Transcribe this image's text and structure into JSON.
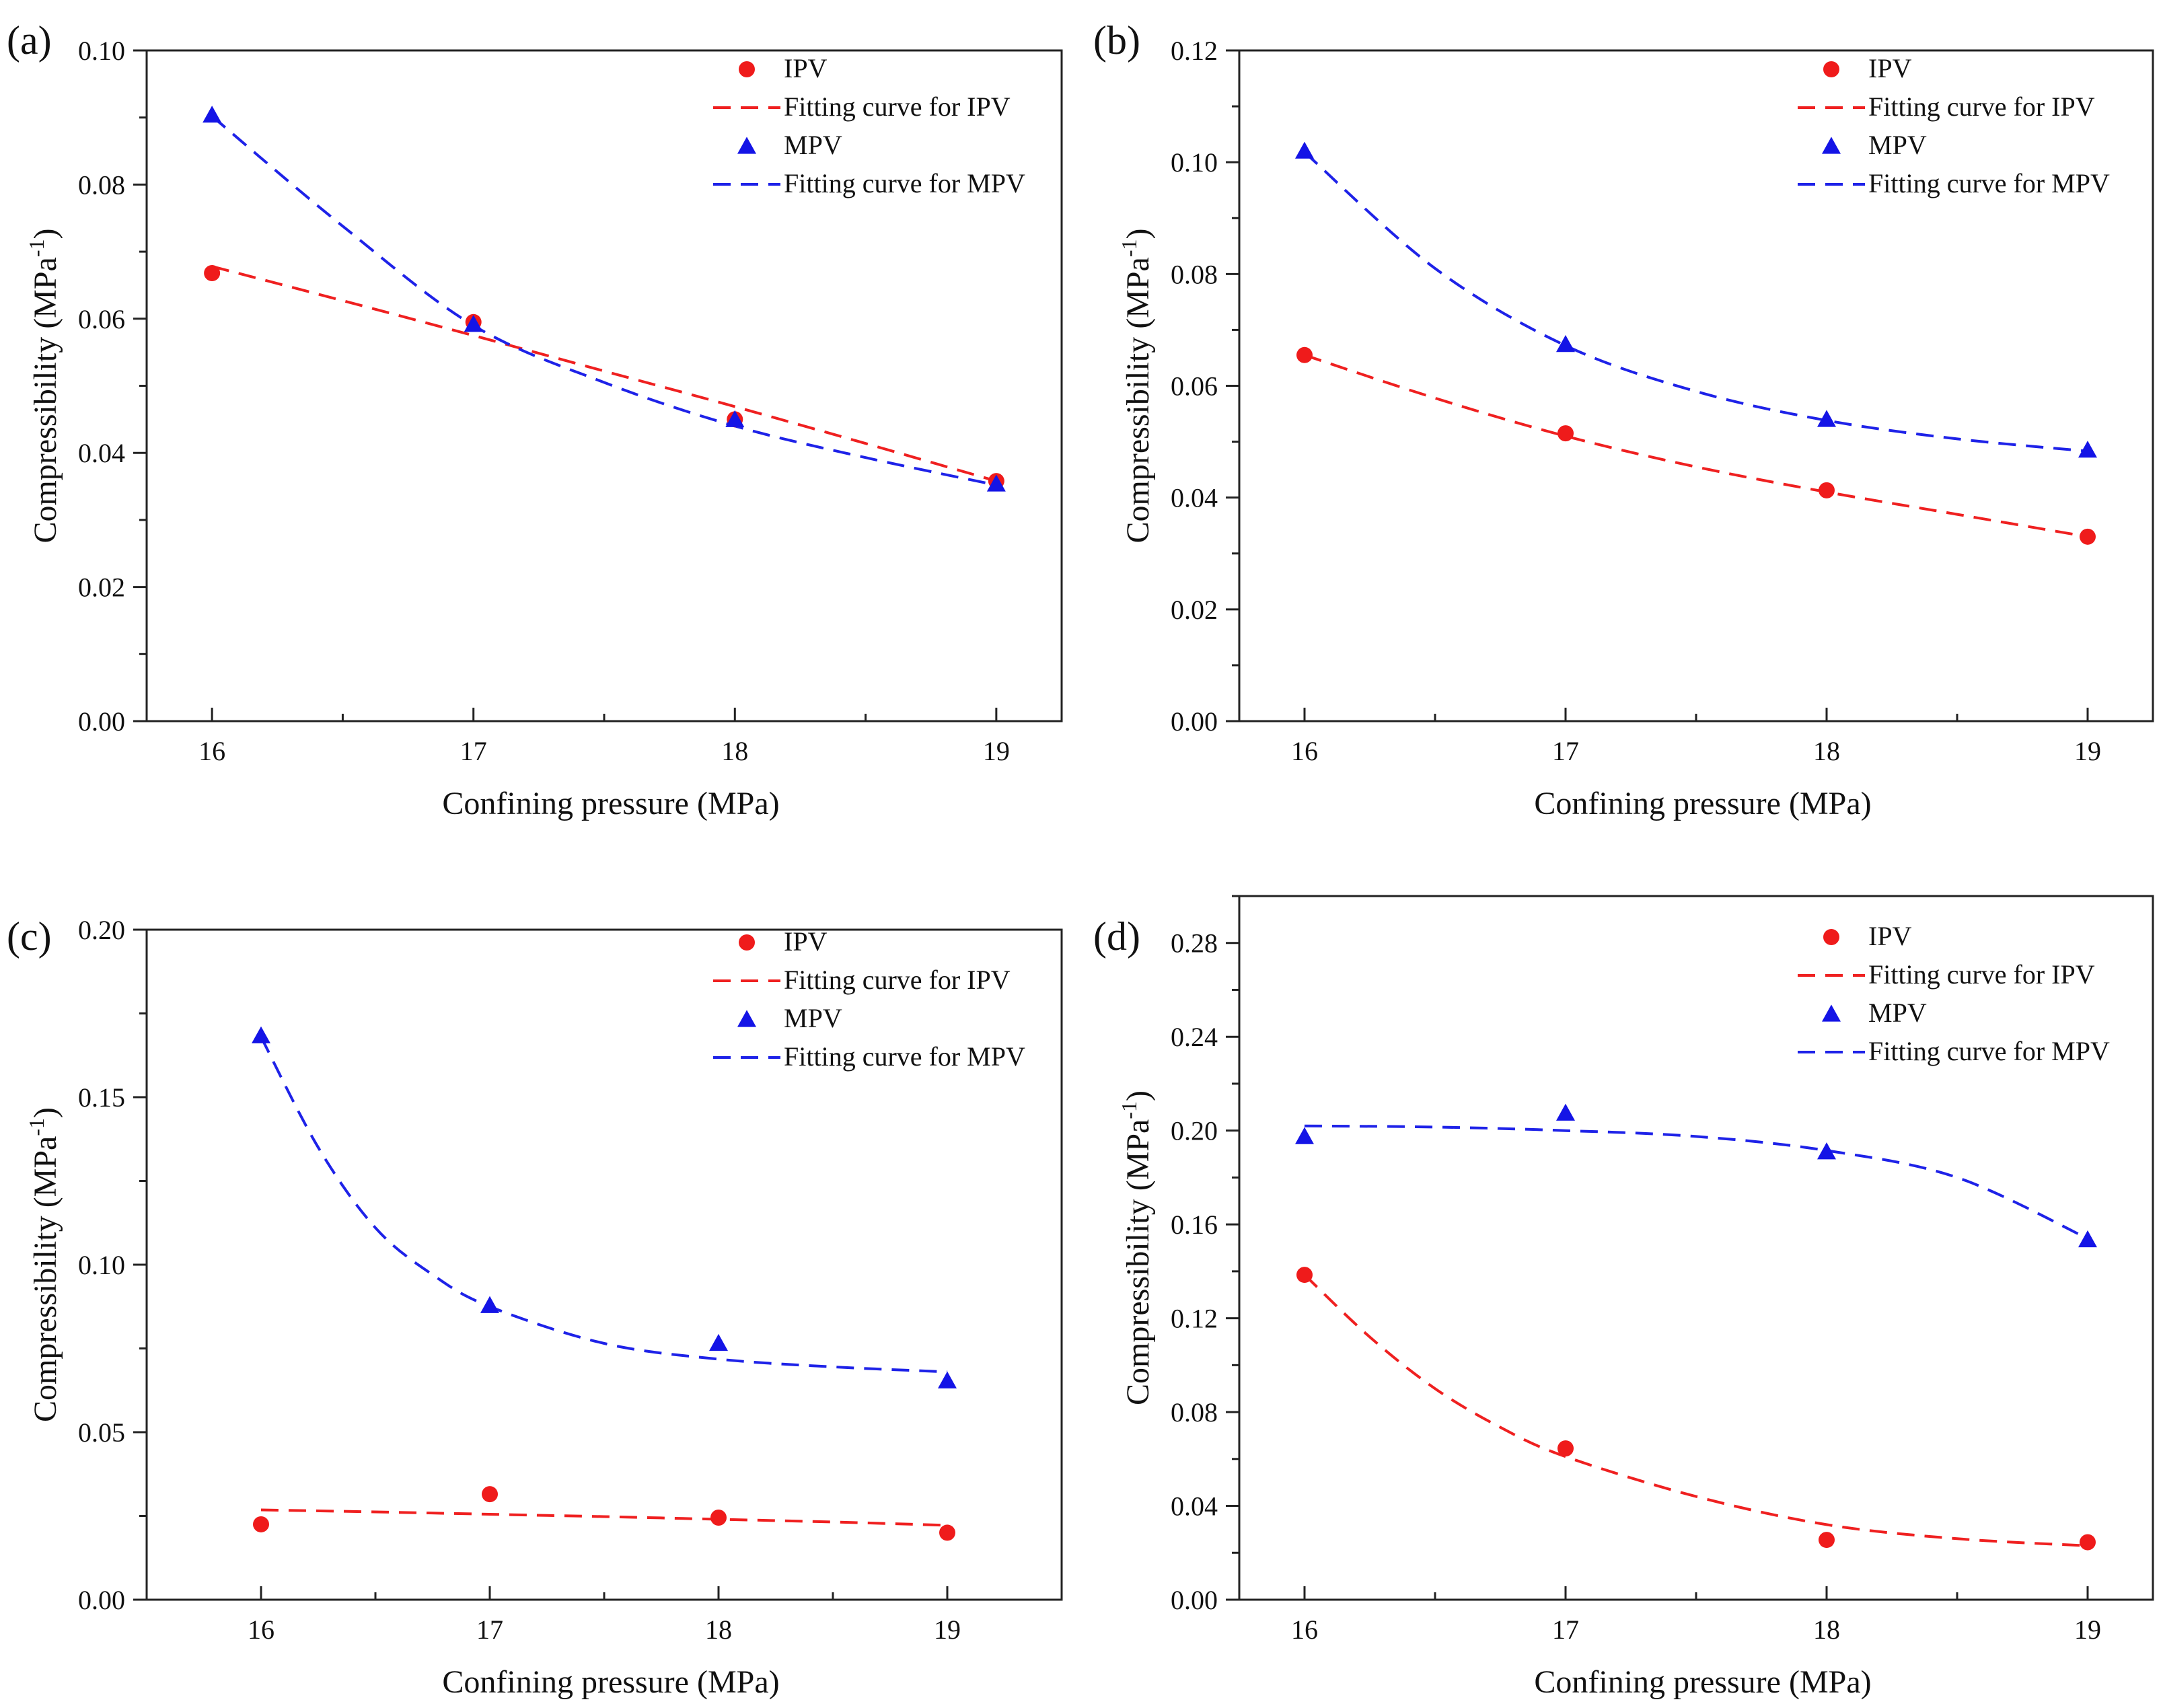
{
  "chart_data": [
    {
      "type": "scatter",
      "panel": "(a)",
      "xlabel": "Confining pressure (MPa)",
      "ylabel": "Compressibility (MPa",
      "ylabel_sup": "-1",
      "ylabel_end": ")",
      "xlim": [
        15.75,
        19.25
      ],
      "ylim": [
        0.0,
        0.1
      ],
      "xticks": [
        16,
        17,
        18,
        19
      ],
      "yticks": [
        0.0,
        0.02,
        0.04,
        0.06,
        0.08,
        0.1
      ],
      "ytick_labels": [
        "0.00",
        "0.02",
        "0.04",
        "0.06",
        "0.08",
        "0.10"
      ],
      "legend": [
        "IPV",
        "Fitting curve for IPV",
        "MPV",
        "Fitting curve for MPV"
      ],
      "series": [
        {
          "name": "IPV",
          "x": [
            16,
            17,
            18,
            19
          ],
          "values": [
            0.0668,
            0.0595,
            0.045,
            0.0358
          ],
          "color": "#ef1b1b",
          "marker": "circle"
        },
        {
          "name": "Fitting curve for IPV",
          "x": [
            16,
            16.5,
            17,
            17.5,
            18,
            18.5,
            19
          ],
          "values": [
            0.0678,
            0.0627,
            0.0575,
            0.0522,
            0.0469,
            0.0414,
            0.0358
          ],
          "color": "#ef2020",
          "style": "dashed"
        },
        {
          "name": "MPV",
          "x": [
            16,
            17,
            18,
            19
          ],
          "values": [
            0.0902,
            0.059,
            0.0448,
            0.0352
          ],
          "color": "#1414e6",
          "marker": "triangle"
        },
        {
          "name": "Fitting curve for MPV",
          "x": [
            16,
            16.5,
            17,
            17.5,
            18,
            18.5,
            19
          ],
          "values": [
            0.0902,
            0.0738,
            0.059,
            0.0505,
            0.044,
            0.0393,
            0.0352
          ],
          "color": "#1e22e8",
          "style": "dashed"
        }
      ]
    },
    {
      "type": "scatter",
      "panel": "(b)",
      "xlabel": "Confining pressure (MPa)",
      "ylabel": "Compressibility (MPa",
      "ylabel_sup": "-1",
      "ylabel_end": ")",
      "xlim": [
        15.75,
        19.25
      ],
      "ylim": [
        0.0,
        0.12
      ],
      "xticks": [
        16,
        17,
        18,
        19
      ],
      "yticks": [
        0.0,
        0.02,
        0.04,
        0.06,
        0.08,
        0.1,
        0.12
      ],
      "ytick_labels": [
        "0.00",
        "0.02",
        "0.04",
        "0.06",
        "0.08",
        "0.10",
        "0.12"
      ],
      "legend": [
        "IPV",
        "Fitting curve for IPV",
        "MPV",
        "Fitting curve for MPV"
      ],
      "series": [
        {
          "name": "IPV",
          "x": [
            16,
            17,
            18,
            19
          ],
          "values": [
            0.0655,
            0.0515,
            0.0413,
            0.033
          ],
          "color": "#ef1b1b",
          "marker": "circle"
        },
        {
          "name": "Fitting curve for IPV",
          "x": [
            16,
            16.5,
            17,
            17.5,
            18,
            18.5,
            19
          ],
          "values": [
            0.0655,
            0.0578,
            0.051,
            0.0455,
            0.041,
            0.037,
            0.033
          ],
          "color": "#ef2020",
          "style": "dashed"
        },
        {
          "name": "MPV",
          "x": [
            16,
            17,
            18,
            19
          ],
          "values": [
            0.1018,
            0.0672,
            0.0538,
            0.0483
          ],
          "color": "#1414e6",
          "marker": "triangle"
        },
        {
          "name": "Fitting curve for MPV",
          "x": [
            16,
            16.5,
            17,
            17.5,
            18,
            18.5,
            19
          ],
          "values": [
            0.1018,
            0.081,
            0.0672,
            0.059,
            0.0538,
            0.0505,
            0.0483
          ],
          "color": "#1e22e8",
          "style": "dashed"
        }
      ]
    },
    {
      "type": "scatter",
      "panel": "(c)",
      "xlabel": "Confining pressure (MPa)",
      "ylabel": "Compressibility (MPa",
      "ylabel_sup": "-1",
      "ylabel_end": ")",
      "xlim": [
        15.5,
        19.5
      ],
      "ylim": [
        0.0,
        0.2
      ],
      "xticks": [
        16,
        17,
        18,
        19
      ],
      "yticks": [
        0.0,
        0.05,
        0.1,
        0.15,
        0.2
      ],
      "ytick_labels": [
        "0.00",
        "0.05",
        "0.10",
        "0.15",
        "0.20"
      ],
      "legend": [
        "IPV",
        "Fitting curve for IPV",
        "MPV",
        "Fitting curve for MPV"
      ],
      "series": [
        {
          "name": "IPV",
          "x": [
            16,
            17,
            18,
            19
          ],
          "values": [
            0.0225,
            0.0315,
            0.0245,
            0.02
          ],
          "color": "#ef1b1b",
          "marker": "circle"
        },
        {
          "name": "Fitting curve for IPV",
          "x": [
            16,
            16.5,
            17,
            17.5,
            18,
            18.5,
            19
          ],
          "values": [
            0.0268,
            0.0262,
            0.0255,
            0.0248,
            0.024,
            0.0232,
            0.0222
          ],
          "color": "#ef2020",
          "style": "dashed"
        },
        {
          "name": "MPV",
          "x": [
            16,
            17,
            18,
            19
          ],
          "values": [
            0.168,
            0.0875,
            0.0762,
            0.065
          ],
          "color": "#1414e6",
          "marker": "triangle"
        },
        {
          "name": "Fitting curve for MPV",
          "x": [
            16,
            16.25,
            16.5,
            16.75,
            17,
            17.5,
            18,
            18.5,
            19
          ],
          "values": [
            0.168,
            0.135,
            0.111,
            0.097,
            0.0875,
            0.0765,
            0.0718,
            0.0695,
            0.068
          ],
          "color": "#1e22e8",
          "style": "dashed"
        }
      ]
    },
    {
      "type": "scatter",
      "panel": "(d)",
      "xlabel": "Confining pressure (MPa)",
      "ylabel": "Compressibility (MPa",
      "ylabel_sup": "-1",
      "ylabel_end": ")",
      "xlim": [
        15.75,
        19.25
      ],
      "ylim": [
        0.0,
        0.3
      ],
      "xticks": [
        16,
        17,
        18,
        19
      ],
      "yticks": [
        0.0,
        0.04,
        0.08,
        0.12,
        0.16,
        0.2,
        0.24,
        0.28
      ],
      "ytick_labels": [
        "0.00",
        "0.04",
        "0.08",
        "0.12",
        "0.16",
        "0.20",
        "0.24",
        "0.28"
      ],
      "legend": [
        "IPV",
        "Fitting curve for IPV",
        "MPV",
        "Fitting curve for MPV"
      ],
      "series": [
        {
          "name": "IPV",
          "x": [
            16,
            17,
            18,
            19
          ],
          "values": [
            0.1385,
            0.0645,
            0.0255,
            0.0245
          ],
          "color": "#ef1b1b",
          "marker": "circle"
        },
        {
          "name": "Fitting curve for IPV",
          "x": [
            16,
            16.25,
            16.5,
            16.75,
            17,
            17.5,
            18,
            18.5,
            19
          ],
          "values": [
            0.1385,
            0.112,
            0.09,
            0.0735,
            0.061,
            0.044,
            0.032,
            0.026,
            0.023
          ],
          "color": "#ef2020",
          "style": "dashed"
        },
        {
          "name": "MPV",
          "x": [
            16,
            17,
            18,
            19
          ],
          "values": [
            0.197,
            0.207,
            0.1905,
            0.153
          ],
          "color": "#1414e6",
          "marker": "triangle"
        },
        {
          "name": "Fitting curve for MPV",
          "x": [
            16,
            16.5,
            17,
            17.5,
            18,
            18.5,
            19
          ],
          "values": [
            0.202,
            0.2015,
            0.2,
            0.1975,
            0.1915,
            0.18,
            0.154
          ],
          "color": "#1e22e8",
          "style": "dashed"
        }
      ]
    }
  ]
}
